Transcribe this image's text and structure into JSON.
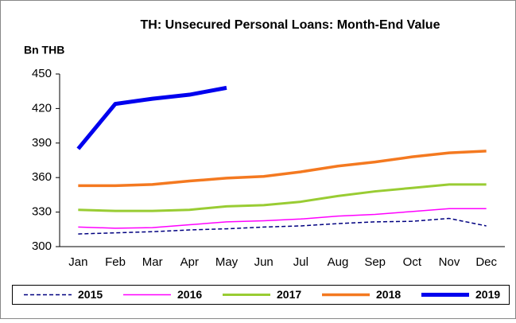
{
  "chart_data": {
    "type": "line",
    "title": "TH: Unsecured Personal Loans: Month-End Value",
    "y_label": "Bn THB",
    "categories": [
      "Jan",
      "Feb",
      "Mar",
      "Apr",
      "May",
      "Jun",
      "Jul",
      "Aug",
      "Sep",
      "Oct",
      "Nov",
      "Dec"
    ],
    "ylim": [
      300,
      450
    ],
    "yticks": [
      300,
      330,
      360,
      390,
      420,
      450
    ],
    "grid": false,
    "legend": "bottom",
    "series": [
      {
        "name": "2015",
        "color": "#000080",
        "width": 1.5,
        "dash": true,
        "values": [
          311,
          312,
          313,
          314.5,
          315.5,
          317,
          318,
          320,
          321.5,
          322,
          324.5,
          318
        ]
      },
      {
        "name": "2016",
        "color": "#ff00ff",
        "width": 1.5,
        "dash": false,
        "values": [
          317,
          316,
          316.5,
          319,
          321.5,
          322.5,
          324,
          326.5,
          328,
          330.5,
          333,
          333
        ]
      },
      {
        "name": "2017",
        "color": "#99cc33",
        "width": 3,
        "dash": false,
        "values": [
          332,
          331,
          331,
          332,
          335,
          336,
          339,
          344,
          348,
          351,
          354,
          354
        ]
      },
      {
        "name": "2018",
        "color": "#f47920",
        "width": 3.5,
        "dash": false,
        "values": [
          353,
          353,
          354,
          357,
          359.5,
          361,
          365,
          370,
          373.5,
          378,
          381.5,
          383
        ]
      },
      {
        "name": "2019",
        "color": "#0000ee",
        "width": 5,
        "dash": false,
        "values": [
          385,
          424,
          428.5,
          432,
          438,
          null,
          null,
          null,
          null,
          null,
          null,
          null
        ]
      }
    ]
  }
}
